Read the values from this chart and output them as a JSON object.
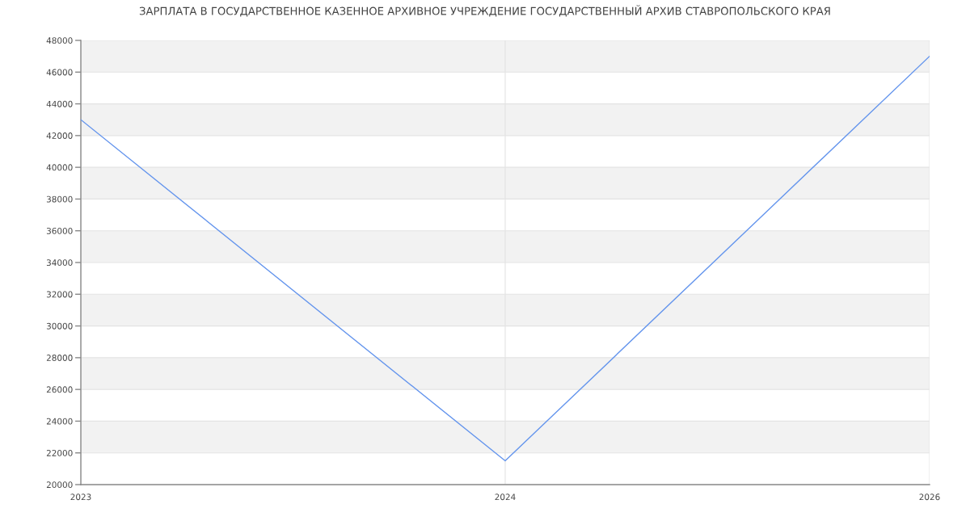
{
  "chart_data": {
    "type": "line",
    "title": "ЗАРПЛАТА В ГОСУДАРСТВЕННОЕ КАЗЕННОЕ АРХИВНОЕ УЧРЕЖДЕНИЕ ГОСУДАРСТВЕННЫЙ АРХИВ СТАВРОПОЛЬСКОГО КРАЯ",
    "categories": [
      "2023",
      "2024",
      "2026"
    ],
    "series": [
      {
        "color": "#6495ed",
        "values": [
          43000,
          21500,
          47000
        ]
      }
    ],
    "ylim": [
      20000,
      48000
    ],
    "yticks": [
      20000,
      22000,
      24000,
      26000,
      28000,
      30000,
      32000,
      34000,
      36000,
      38000,
      40000,
      42000,
      44000,
      46000,
      48000
    ],
    "bands": [
      {
        "axis": "y",
        "from": 22000,
        "to": 24000,
        "color": "#f2f2f2"
      },
      {
        "axis": "y",
        "from": 26000,
        "to": 28000,
        "color": "#f2f2f2"
      },
      {
        "axis": "y",
        "from": 30000,
        "to": 32000,
        "color": "#f2f2f2"
      },
      {
        "axis": "y",
        "from": 34000,
        "to": 36000,
        "color": "#f2f2f2"
      },
      {
        "axis": "y",
        "from": 38000,
        "to": 40000,
        "color": "#f2f2f2"
      },
      {
        "axis": "y",
        "from": 42000,
        "to": 44000,
        "color": "#f2f2f2"
      },
      {
        "axis": "y",
        "from": 46000,
        "to": 48000,
        "color": "#f2f2f2"
      }
    ],
    "grid": true,
    "marker": "none",
    "line_style": "solid"
  }
}
